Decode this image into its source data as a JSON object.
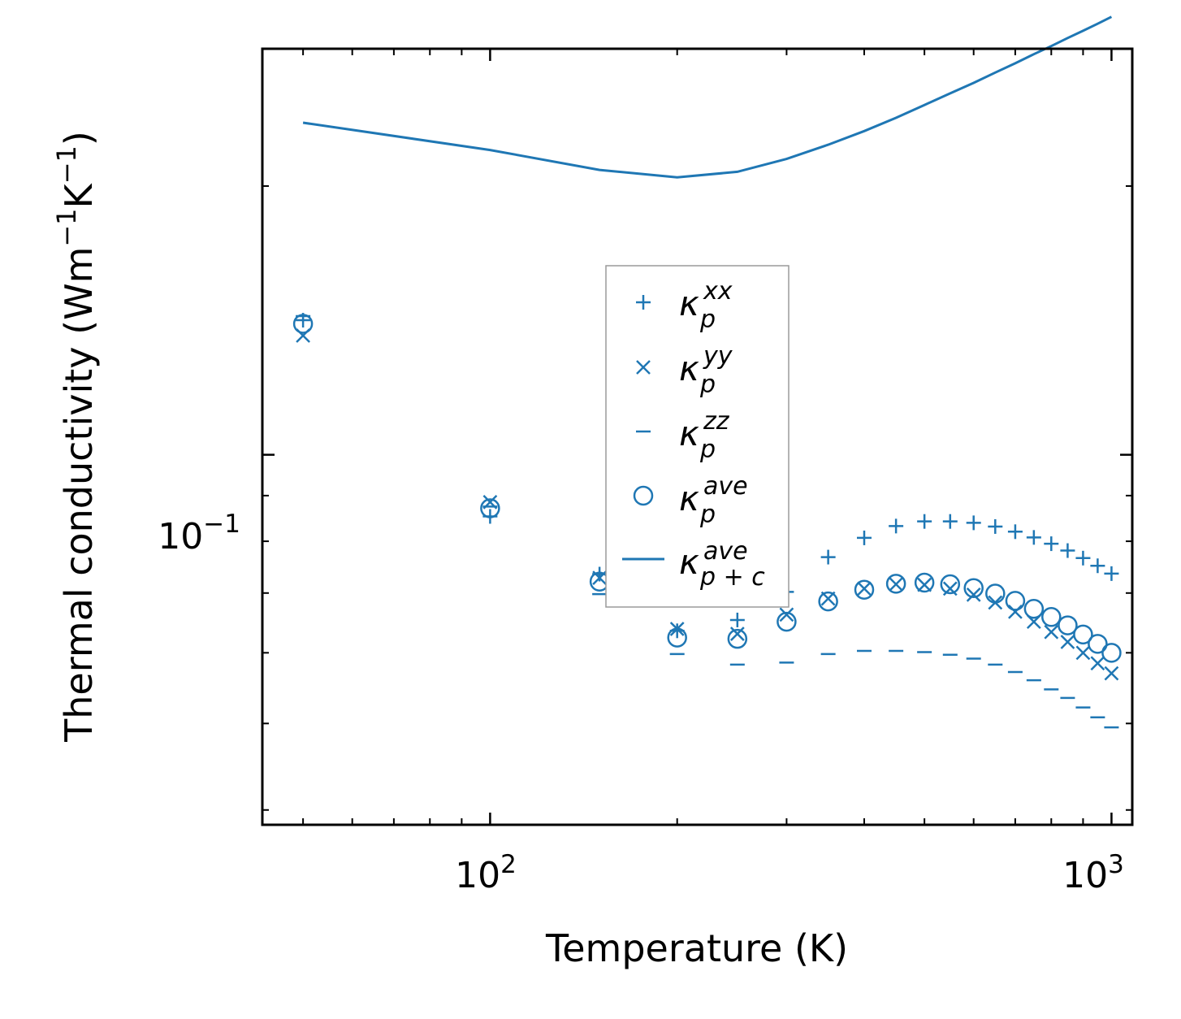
{
  "chart_data": {
    "type": "scatter",
    "xscale": "log",
    "yscale": "log",
    "xlabel": "Temperature (K)",
    "ylabel_parts": [
      "Thermal conductivity (Wm",
      "−1",
      "K",
      "−1",
      ")"
    ],
    "xlim": [
      43,
      1080
    ],
    "ylim": [
      0.0385,
      0.285
    ],
    "x_ticks": [
      {
        "value": 100,
        "base": "10",
        "exp": "2"
      },
      {
        "value": 1000,
        "base": "10",
        "exp": "3"
      }
    ],
    "y_ticks": [
      {
        "value": 0.1,
        "base": "10",
        "exp": "−1"
      }
    ],
    "color": "#1f77b4",
    "series": [
      {
        "key": "kxx",
        "marker": "plus",
        "legend": {
          "base": "κ",
          "sup": "xx",
          "sub": "p"
        },
        "x": [
          50,
          100,
          150,
          200,
          250,
          300,
          350,
          400,
          450,
          500,
          550,
          600,
          650,
          700,
          750,
          800,
          850,
          900,
          950,
          1000
        ],
        "y": [
          0.1415,
          0.0853,
          0.0735,
          0.0635,
          0.0653,
          0.0702,
          0.0768,
          0.0807,
          0.0832,
          0.0842,
          0.0842,
          0.0839,
          0.0831,
          0.082,
          0.0808,
          0.0795,
          0.0781,
          0.0766,
          0.0751,
          0.0736
        ]
      },
      {
        "key": "kyy",
        "marker": "x",
        "legend": {
          "base": "κ",
          "sup": "yy",
          "sub": "p"
        },
        "x": [
          50,
          100,
          150,
          200,
          250,
          300,
          350,
          400,
          450,
          500,
          550,
          600,
          650,
          700,
          750,
          800,
          850,
          900,
          950,
          1000
        ],
        "y": [
          0.136,
          0.0885,
          0.0728,
          0.0638,
          0.063,
          0.0662,
          0.069,
          0.0708,
          0.0716,
          0.0715,
          0.0708,
          0.0697,
          0.0683,
          0.0667,
          0.065,
          0.0633,
          0.0617,
          0.06,
          0.0584,
          0.0569
        ]
      },
      {
        "key": "kzz",
        "marker": "dash",
        "legend": {
          "base": "κ",
          "sup": "zz",
          "sub": "p"
        },
        "x": [
          50,
          100,
          150,
          200,
          250,
          300,
          350,
          400,
          450,
          500,
          550,
          600,
          650,
          700,
          750,
          800,
          850,
          900,
          950,
          1000
        ],
        "y": [
          0.143,
          0.0875,
          0.0698,
          0.0598,
          0.0582,
          0.0585,
          0.0598,
          0.0603,
          0.0603,
          0.0601,
          0.0597,
          0.0591,
          0.0582,
          0.0571,
          0.0559,
          0.0546,
          0.0534,
          0.0521,
          0.0508,
          0.0495
        ]
      },
      {
        "key": "kave",
        "marker": "circle",
        "legend": {
          "base": "κ",
          "sup": "ave",
          "sub": "p"
        },
        "x": [
          50,
          100,
          150,
          200,
          250,
          300,
          350,
          400,
          450,
          500,
          550,
          600,
          650,
          700,
          750,
          800,
          850,
          900,
          950,
          1000
        ],
        "y": [
          0.1402,
          0.0871,
          0.0721,
          0.0624,
          0.0622,
          0.065,
          0.0685,
          0.0706,
          0.0717,
          0.0719,
          0.0716,
          0.0709,
          0.0699,
          0.0686,
          0.0672,
          0.0658,
          0.0644,
          0.0629,
          0.0614,
          0.06
        ]
      },
      {
        "key": "kpc",
        "marker": "line",
        "legend": {
          "base": "κ",
          "sup": "ave",
          "sub": "p + c"
        },
        "x": [
          50,
          100,
          150,
          200,
          250,
          300,
          350,
          400,
          450,
          500,
          550,
          600,
          650,
          700,
          750,
          800,
          850,
          900,
          950,
          1000
        ],
        "y": [
          0.2355,
          0.2195,
          0.2085,
          0.2045,
          0.2075,
          0.2145,
          0.2225,
          0.2305,
          0.2385,
          0.2465,
          0.254,
          0.261,
          0.268,
          0.2745,
          0.281,
          0.287,
          0.293,
          0.2985,
          0.304,
          0.3095
        ]
      }
    ]
  }
}
